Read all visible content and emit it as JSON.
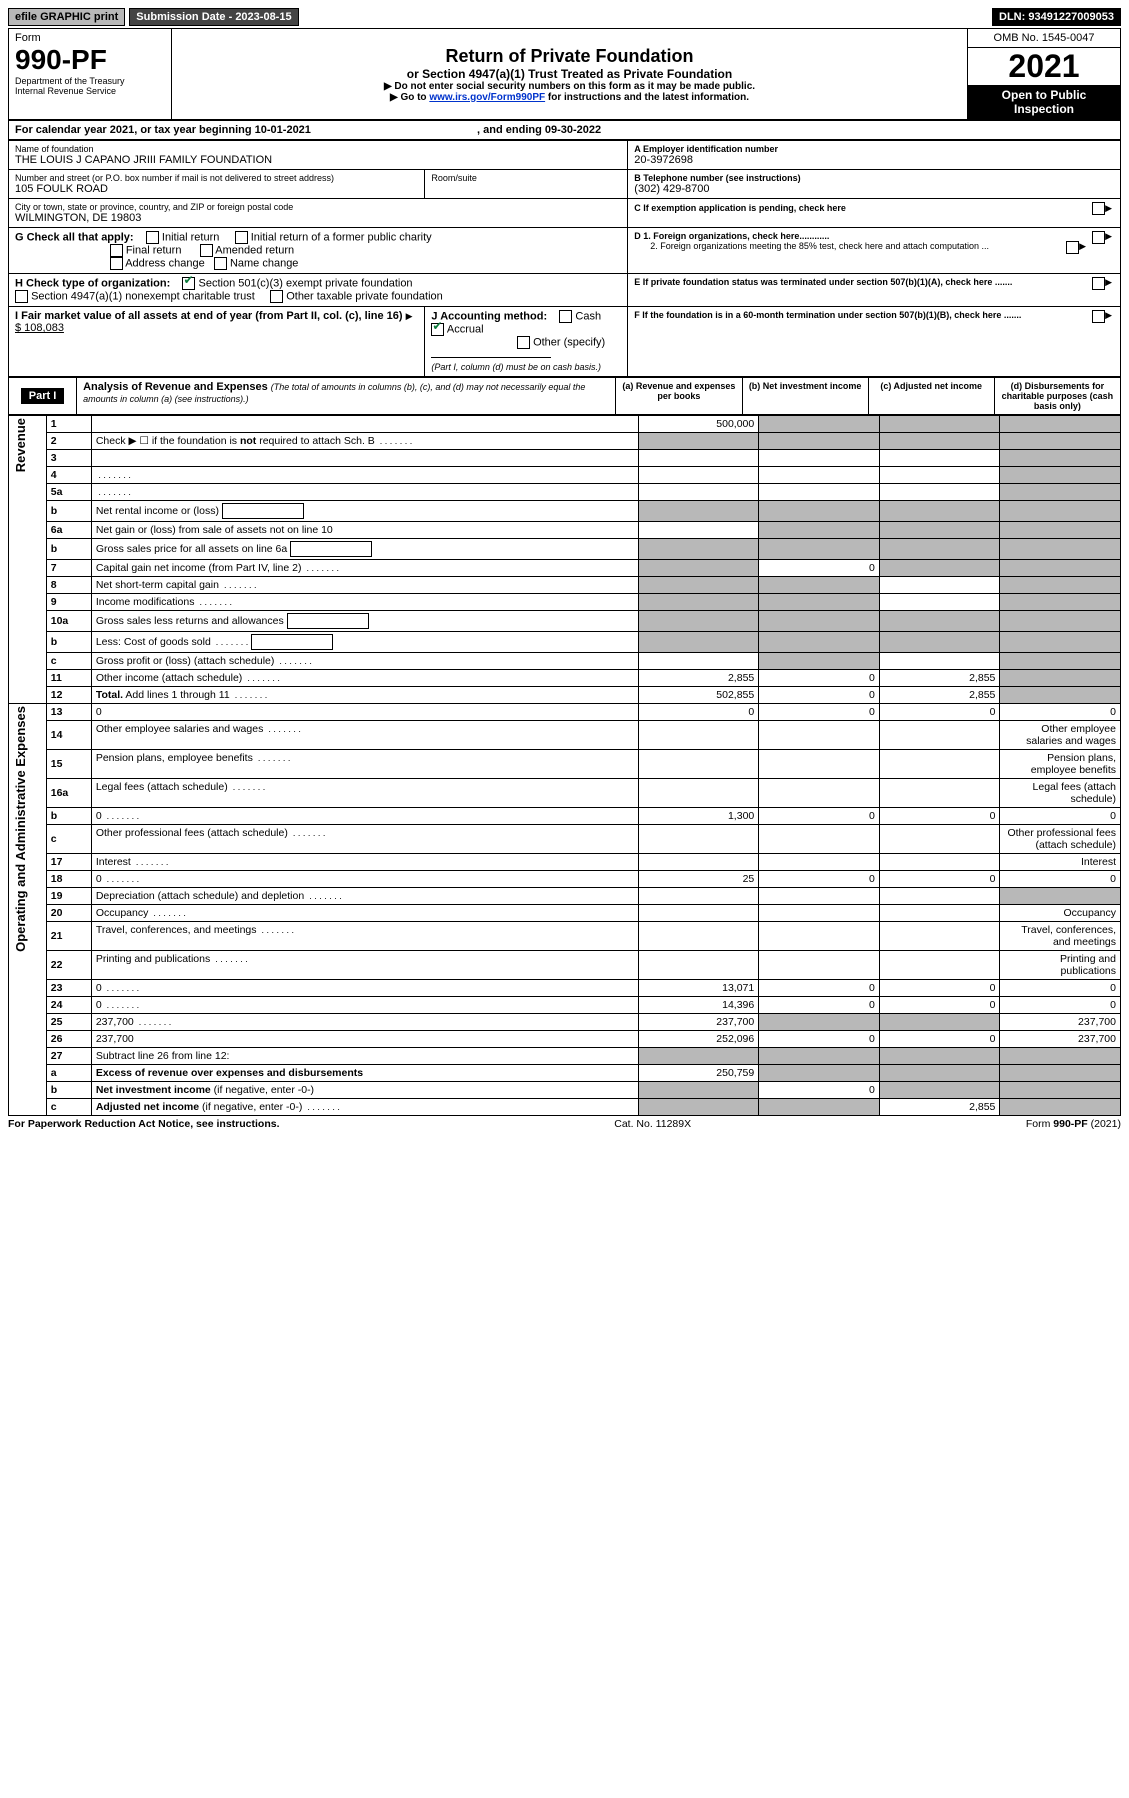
{
  "topbar": {
    "efile": "efile GRAPHIC print",
    "sublabel": "Submission Date - 2023-08-15",
    "dln": "DLN: 93491227009053"
  },
  "header": {
    "form_label": "Form",
    "form_no": "990-PF",
    "dept1": "Department of the Treasury",
    "dept2": "Internal Revenue Service",
    "title": "Return of Private Foundation",
    "subtitle": "or Section 4947(a)(1) Trust Treated as Private Foundation",
    "note1": "▶ Do not enter social security numbers on this form as it may be made public.",
    "note2_pre": "▶ Go to ",
    "note2_link": "www.irs.gov/Form990PF",
    "note2_post": " for instructions and the latest information.",
    "omb": "OMB No. 1545-0047",
    "year": "2021",
    "open": "Open to Public Inspection"
  },
  "address_block": {
    "cal_line": "For calendar year 2021, or tax year beginning 10-01-2021",
    "cal_end": ", and ending 09-30-2022",
    "name_label": "Name of foundation",
    "name": "THE LOUIS J CAPANO JRIII FAMILY FOUNDATION",
    "street_label": "Number and street (or P.O. box number if mail is not delivered to street address)",
    "street": "105 FOULK ROAD",
    "room_label": "Room/suite",
    "city_label": "City or town, state or province, country, and ZIP or foreign postal code",
    "city": "WILMINGTON, DE  19803",
    "A_label": "A Employer identification number",
    "A_val": "20-3972698",
    "B_label": "B Telephone number (see instructions)",
    "B_val": "(302) 429-8700",
    "C_label": "C If exemption application is pending, check here",
    "G_label": "G Check all that apply:",
    "G1": "Initial return",
    "G2": "Initial return of a former public charity",
    "G3": "Final return",
    "G4": "Amended return",
    "G5": "Address change",
    "G6": "Name change",
    "D1": "D 1. Foreign organizations, check here............",
    "D2": "2. Foreign organizations meeting the 85% test, check here and attach computation ...",
    "H_label": "H Check type of organization:",
    "H1": "Section 501(c)(3) exempt private foundation",
    "H2": "Section 4947(a)(1) nonexempt charitable trust",
    "H3": "Other taxable private foundation",
    "E_label": "E If private foundation status was terminated under section 507(b)(1)(A), check here .......",
    "I_label": "I Fair market value of all assets at end of year (from Part II, col. (c), line 16)",
    "I_val": "$  108,083",
    "J_label": "J Accounting method:",
    "J1": "Cash",
    "J2": "Accrual",
    "J3": "Other (specify)",
    "J_note": "(Part I, column (d) must be on cash basis.)",
    "F_label": "F  If the foundation is in a 60-month termination under section 507(b)(1)(B), check here ......."
  },
  "part1": {
    "label": "Part I",
    "title": "Analysis of Revenue and Expenses",
    "title_note": "(The total of amounts in columns (b), (c), and (d) may not necessarily equal the amounts in column (a) (see instructions).)",
    "col_a": "(a)   Revenue and expenses per books",
    "col_b": "(b)   Net investment income",
    "col_c": "(c)   Adjusted net income",
    "col_d": "(d)   Disbursements for charitable purposes (cash basis only)",
    "side_rev": "Revenue",
    "side_exp": "Operating and Administrative Expenses",
    "rows": [
      {
        "n": "1",
        "d": "",
        "a": "500,000",
        "b": "",
        "c": "",
        "grey_bcd": true
      },
      {
        "n": "2",
        "d": "Check ▶ ☐ if the foundation is <b>not</b> required to attach Sch. B",
        "dots": true,
        "allgrey": true
      },
      {
        "n": "3",
        "d": "",
        "a": "",
        "b": "",
        "c": "",
        "grey_d": true
      },
      {
        "n": "4",
        "d": "",
        "dots": true,
        "a": "",
        "b": "",
        "c": "",
        "grey_d": true
      },
      {
        "n": "5a",
        "d": "",
        "dots": true,
        "a": "",
        "b": "",
        "c": "",
        "grey_d": true
      },
      {
        "n": "b",
        "d": "Net rental income or (loss)",
        "box": true,
        "allgrey": true
      },
      {
        "n": "6a",
        "d": "Net gain or (loss) from sale of assets not on line 10",
        "a": "",
        "grey_bcd": true
      },
      {
        "n": "b",
        "d": "Gross sales price for all assets on line 6a",
        "box": true,
        "allgrey": true
      },
      {
        "n": "7",
        "d": "Capital gain net income (from Part IV, line 2)",
        "dots": true,
        "grey_a": true,
        "b": "0",
        "grey_cd": true
      },
      {
        "n": "8",
        "d": "Net short-term capital gain",
        "dots": true,
        "grey_ab": true,
        "c": "",
        "grey_d": true
      },
      {
        "n": "9",
        "d": "Income modifications",
        "dots": true,
        "grey_ab": true,
        "c": "",
        "grey_d": true
      },
      {
        "n": "10a",
        "d": "Gross sales less returns and allowances",
        "box": true,
        "allgrey": true
      },
      {
        "n": "b",
        "d": "Less: Cost of goods sold",
        "dots": true,
        "box": true,
        "allgrey": true
      },
      {
        "n": "c",
        "d": "Gross profit or (loss) (attach schedule)",
        "dots": true,
        "a": "",
        "grey_b": true,
        "c": "",
        "grey_d": true
      },
      {
        "n": "11",
        "d": "Other income (attach schedule)",
        "dots": true,
        "a": "2,855",
        "b": "0",
        "c": "2,855",
        "grey_d": true
      },
      {
        "n": "12",
        "d": "<b>Total.</b> Add lines 1 through 11",
        "dots": true,
        "a": "502,855",
        "b": "0",
        "c": "2,855",
        "grey_d": true
      },
      {
        "n": "13",
        "d": "0",
        "a": "0",
        "b": "0",
        "c": "0"
      },
      {
        "n": "14",
        "d": "Other employee salaries and wages",
        "dots": true
      },
      {
        "n": "15",
        "d": "Pension plans, employee benefits",
        "dots": true
      },
      {
        "n": "16a",
        "d": "Legal fees (attach schedule)",
        "dots": true
      },
      {
        "n": "b",
        "d": "0",
        "dots": true,
        "a": "1,300",
        "b": "0",
        "c": "0"
      },
      {
        "n": "c",
        "d": "Other professional fees (attach schedule)",
        "dots": true
      },
      {
        "n": "17",
        "d": "Interest",
        "dots": true
      },
      {
        "n": "18",
        "d": "0",
        "dots": true,
        "a": "25",
        "b": "0",
        "c": "0"
      },
      {
        "n": "19",
        "d": "Depreciation (attach schedule) and depletion",
        "dots": true,
        "grey_d": true
      },
      {
        "n": "20",
        "d": "Occupancy",
        "dots": true
      },
      {
        "n": "21",
        "d": "Travel, conferences, and meetings",
        "dots": true
      },
      {
        "n": "22",
        "d": "Printing and publications",
        "dots": true
      },
      {
        "n": "23",
        "d": "0",
        "dots": true,
        "a": "13,071",
        "b": "0",
        "c": "0"
      },
      {
        "n": "24",
        "d": "0",
        "dots": true,
        "a": "14,396",
        "b": "0",
        "c": "0"
      },
      {
        "n": "25",
        "d": "237,700",
        "dots": true,
        "a": "237,700",
        "grey_bc": true
      },
      {
        "n": "26",
        "d": "237,700",
        "a": "252,096",
        "b": "0",
        "c": "0"
      },
      {
        "n": "27",
        "d": "Subtract line 26 from line 12:",
        "allgrey": true
      },
      {
        "n": "a",
        "d": "<b>Excess of revenue over expenses and disbursements</b>",
        "a": "250,759",
        "grey_bcd": true
      },
      {
        "n": "b",
        "d": "<b>Net investment income</b> (if negative, enter -0-)",
        "grey_a": true,
        "b": "0",
        "grey_cd": true
      },
      {
        "n": "c",
        "d": "<b>Adjusted net income</b> (if negative, enter -0-)",
        "dots": true,
        "grey_ab": true,
        "c": "2,855",
        "grey_d": true
      }
    ]
  },
  "footer": {
    "left": "For Paperwork Reduction Act Notice, see instructions.",
    "mid": "Cat. No. 11289X",
    "right": "Form 990-PF (2021)"
  },
  "colors": {
    "grey": "#b8b8b8",
    "link": "#0033cc",
    "check": "#0a7a3a"
  }
}
